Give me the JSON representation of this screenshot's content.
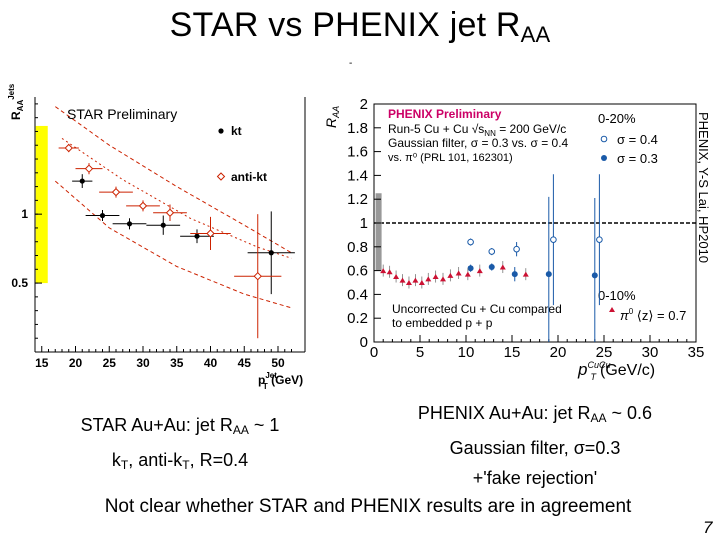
{
  "slide": {
    "title_main": "STAR vs PHENIX jet R",
    "title_sub": "AA",
    "dash_mark": "-",
    "page_number": "7",
    "conclusion": "Not clear whether STAR and PHENIX results are in agreement",
    "star_caption": {
      "line1_a": "STAR Au+Au: jet R",
      "line1_sub": "AA",
      "line1_b": " ~ 1",
      "line2_a": "k",
      "line2_sub": "T",
      "line2_b": ", anti-k",
      "line2_sub2": "T",
      "line2_c": ", R=0.4"
    },
    "phenix_caption": {
      "line1_a": "PHENIX Au+Au: jet R",
      "line1_sub": "AA",
      "line1_b": " ~ 0.6",
      "line2": "Gaussian filter, σ=0.3",
      "line3": "+'fake rejection'"
    }
  },
  "colors": {
    "star_band": "#ffff00",
    "star_envelope": "#cc2200",
    "phenix_header": "#cc0066",
    "phenix_sigma04": "#1a5aa8",
    "phenix_sigma03": "#1a5aa8",
    "phenix_pi0": "#cc1133",
    "fake_rejection_band": "#999999"
  },
  "chart_data": [
    {
      "type": "scatter",
      "header": "STAR Preliminary",
      "ylabel_main": "R",
      "ylabel_sub": "AA",
      "ylabel_sup": "Jets",
      "xlabel_main": "p",
      "xlabel_sub": "T",
      "xlabel_sup": "Jet",
      "xlabel_unit": "(GeV)",
      "xticks": [
        15,
        20,
        25,
        30,
        35,
        40,
        45,
        50
      ],
      "yticks": [
        {
          "value": 1,
          "label": "1"
        },
        {
          "value": 0.5,
          "label": "0.5"
        }
      ],
      "xlim": [
        14,
        54
      ],
      "ylim": [
        0,
        1.85
      ],
      "legend": [
        {
          "name": "kt",
          "symbol": "filled-dot"
        },
        {
          "name": "anti-kt",
          "symbol": "open-diamond"
        }
      ],
      "series": [
        {
          "name": "kt",
          "symbol": "filled-dot",
          "points": [
            {
              "x": 21,
              "y": 1.24,
              "xerr": 1.5,
              "yerr": 0.05
            },
            {
              "x": 24,
              "y": 0.99,
              "xerr": 2.5,
              "yerr": 0.04
            },
            {
              "x": 28,
              "y": 0.93,
              "xerr": 2.5,
              "yerr": 0.04
            },
            {
              "x": 33,
              "y": 0.92,
              "xerr": 2.5,
              "yerr": 0.07
            },
            {
              "x": 38,
              "y": 0.84,
              "xerr": 2.5,
              "yerr": 0.05
            },
            {
              "x": 49,
              "y": 0.72,
              "xerr": 3.5,
              "yerr": 0.3
            }
          ]
        },
        {
          "name": "anti-kt",
          "symbol": "open-diamond",
          "points": [
            {
              "x": 19,
              "y": 1.48,
              "xerr": 1.5,
              "yerr": 0.03
            },
            {
              "x": 22,
              "y": 1.33,
              "xerr": 2.0,
              "yerr": 0.04
            },
            {
              "x": 26,
              "y": 1.16,
              "xerr": 2.5,
              "yerr": 0.04
            },
            {
              "x": 30,
              "y": 1.06,
              "xerr": 2.5,
              "yerr": 0.04
            },
            {
              "x": 34,
              "y": 1.01,
              "xerr": 2.5,
              "yerr": 0.06
            },
            {
              "x": 40,
              "y": 0.86,
              "xerr": 3.0,
              "yerr": 0.12
            },
            {
              "x": 47,
              "y": 0.55,
              "xerr": 3.5,
              "yerr": 0.45
            }
          ]
        }
      ],
      "band": {
        "x": 15,
        "y_low": 0.5,
        "y_high": 1.64
      },
      "envelope_upper": [
        {
          "x": 17,
          "y": 1.78
        },
        {
          "x": 25,
          "y": 1.5
        },
        {
          "x": 35,
          "y": 1.2
        },
        {
          "x": 45,
          "y": 0.92
        },
        {
          "x": 52,
          "y": 0.72
        }
      ],
      "envelope_lower": [
        {
          "x": 17,
          "y": 1.24
        },
        {
          "x": 25,
          "y": 0.9
        },
        {
          "x": 35,
          "y": 0.62
        },
        {
          "x": 45,
          "y": 0.42
        },
        {
          "x": 52,
          "y": 0.32
        }
      ],
      "envelope_inner": [
        {
          "x": 18,
          "y": 1.55
        },
        {
          "x": 27,
          "y": 1.25
        },
        {
          "x": 37,
          "y": 0.97
        },
        {
          "x": 47,
          "y": 0.76
        },
        {
          "x": 52,
          "y": 0.68
        }
      ]
    },
    {
      "type": "scatter",
      "header": "PHENIX Preliminary",
      "header_lines": [
        "Run-5 Cu + Cu √s",
        "Gaussian filter, σ = 0.3 vs. σ = 0.4",
        "vs. π⁰ (PRL 101, 162301)"
      ],
      "header_sub": "NN",
      "header_energy": " = 200 GeV/c",
      "ylabel": "R",
      "ylabel_sub": "AA",
      "xlabel_main": "p",
      "xlabel_sub": "T",
      "xlabel_sup": "CuCu",
      "xlabel_unit": "(GeV/c)",
      "xlim": [
        0,
        35
      ],
      "ylim": [
        0,
        2
      ],
      "xticks": [
        0,
        5,
        10,
        15,
        20,
        25,
        30,
        35
      ],
      "yticks": [
        "0",
        "0.2",
        "0.4",
        "0.6",
        "0.8",
        "1",
        "1.2",
        "1.4",
        "1.6",
        "1.8",
        "2"
      ],
      "centrality_top": "0-20%",
      "centrality_bottom": "0-10%",
      "legend": [
        {
          "name": "σ = 0.4",
          "symbol": "open-circle"
        },
        {
          "name": "σ = 0.3",
          "symbol": "filled-circle"
        }
      ],
      "pi0_legend": {
        "label_pre": "π",
        "label_sup": "0",
        "label_mid": " ⟨z⟩ = 0.7"
      },
      "note": [
        "Uncorrected Cu + Cu compared",
        "to embedded p + p"
      ],
      "reference_line": 1,
      "fake_rejection_band": {
        "x": 0.5,
        "y_low": 0.6,
        "y_high": 1.25
      },
      "series": [
        {
          "name": "σ = 0.4",
          "symbol": "open-circle",
          "points": [
            {
              "x": 10.5,
              "y": 0.84,
              "yerr": 0.03
            },
            {
              "x": 12.8,
              "y": 0.76,
              "yerr": 0.03
            },
            {
              "x": 15.5,
              "y": 0.78,
              "yerr": 0.06
            },
            {
              "x": 19.5,
              "y": 0.86,
              "yerr": 0.55
            },
            {
              "x": 24.5,
              "y": 0.86,
              "yerr": 0.55
            }
          ]
        },
        {
          "name": "σ = 0.3",
          "symbol": "filled-circle",
          "points": [
            {
              "x": 10.5,
              "y": 0.62,
              "yerr": 0.03
            },
            {
              "x": 12.8,
              "y": 0.63,
              "yerr": 0.03
            },
            {
              "x": 15.3,
              "y": 0.57,
              "yerr": 0.06
            },
            {
              "x": 19.0,
              "y": 0.57,
              "yerr": 0.65
            },
            {
              "x": 24.0,
              "y": 0.56,
              "yerr": 0.65
            }
          ]
        },
        {
          "name": "π0 ⟨z⟩ = 0.7",
          "symbol": "filled-triangle",
          "points": [
            {
              "x": 1.0,
              "y": 0.6
            },
            {
              "x": 1.7,
              "y": 0.59
            },
            {
              "x": 2.4,
              "y": 0.55
            },
            {
              "x": 3.1,
              "y": 0.52
            },
            {
              "x": 3.8,
              "y": 0.5
            },
            {
              "x": 4.5,
              "y": 0.52
            },
            {
              "x": 5.2,
              "y": 0.5
            },
            {
              "x": 5.9,
              "y": 0.53
            },
            {
              "x": 6.7,
              "y": 0.55
            },
            {
              "x": 7.5,
              "y": 0.53
            },
            {
              "x": 8.3,
              "y": 0.56
            },
            {
              "x": 9.2,
              "y": 0.58
            },
            {
              "x": 10.2,
              "y": 0.57
            },
            {
              "x": 11.5,
              "y": 0.6
            },
            {
              "x": 14.0,
              "y": 0.63
            },
            {
              "x": 16.5,
              "y": 0.57
            }
          ]
        }
      ],
      "credit": "PHENIX, Y-S Lai, HP2010"
    }
  ]
}
